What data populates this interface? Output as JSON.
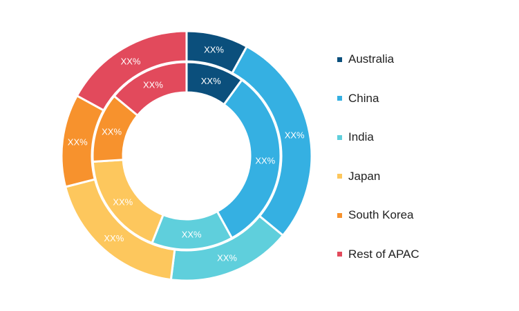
{
  "chart_data": {
    "type": "pie",
    "variant": "double-donut",
    "title": "",
    "categories": [
      "Australia",
      "China",
      "India",
      "Japan",
      "South Korea",
      "Rest of APAC"
    ],
    "colors": [
      "#0b4f7c",
      "#35b0e2",
      "#5fcfdc",
      "#fdc75d",
      "#f7922d",
      "#e24a5c"
    ],
    "series": [
      {
        "ring": "outer",
        "values": [
          8,
          28,
          16,
          19,
          12,
          17
        ],
        "labels": [
          "XX%",
          "XX%",
          "XX%",
          "XX%",
          "XX%",
          "XX%"
        ]
      },
      {
        "ring": "inner",
        "values": [
          10,
          32,
          14,
          18,
          12,
          14
        ],
        "labels": [
          "XX%",
          "XX%",
          "XX%",
          "XX%",
          "XX%",
          "XX%"
        ]
      }
    ],
    "legend": {
      "position": "right",
      "entries": [
        "Australia",
        "China",
        "India",
        "Japan",
        "South Korea",
        "Rest of APAC"
      ]
    }
  }
}
